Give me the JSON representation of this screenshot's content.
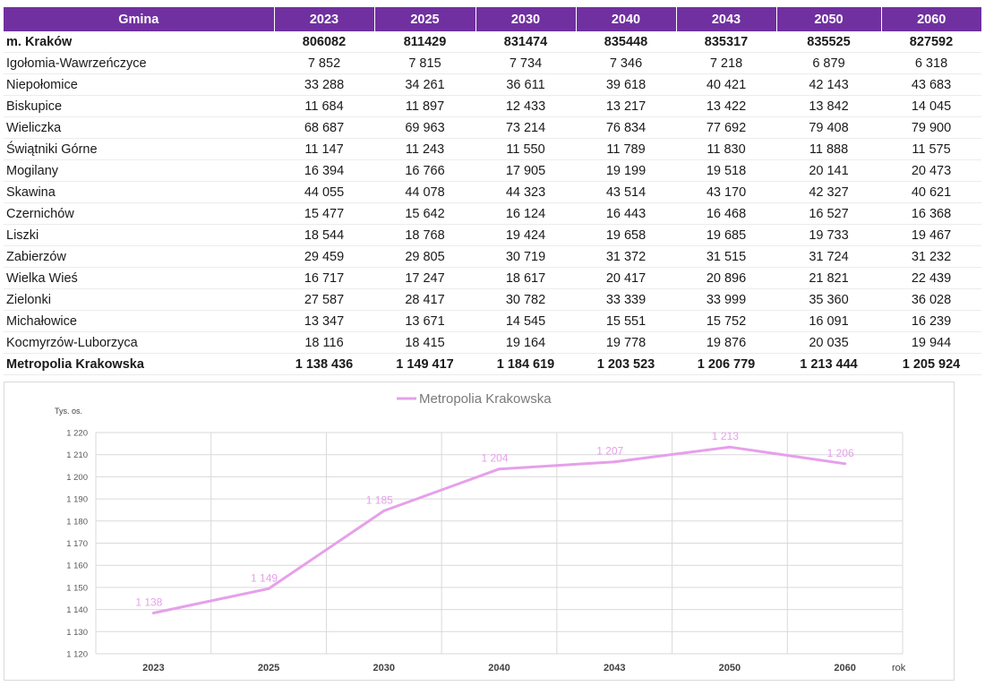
{
  "table": {
    "headers": [
      "Gmina",
      "2023",
      "2025",
      "2030",
      "2040",
      "2043",
      "2050",
      "2060"
    ],
    "rows": [
      {
        "name": "m. Kraków",
        "values": [
          "806082",
          "811429",
          "831474",
          "835448",
          "835317",
          "835525",
          "827592"
        ],
        "bold": true
      },
      {
        "name": "Igołomia-Wawrzeńczyce",
        "values": [
          "7 852",
          "7 815",
          "7 734",
          "7 346",
          "7 218",
          "6 879",
          "6 318"
        ],
        "bold": false
      },
      {
        "name": "Niepołomice",
        "values": [
          "33 288",
          "34 261",
          "36 611",
          "39 618",
          "40 421",
          "42 143",
          "43 683"
        ],
        "bold": false
      },
      {
        "name": "Biskupice",
        "values": [
          "11 684",
          "11 897",
          "12 433",
          "13 217",
          "13 422",
          "13 842",
          "14 045"
        ],
        "bold": false
      },
      {
        "name": "Wieliczka",
        "values": [
          "68 687",
          "69 963",
          "73 214",
          "76 834",
          "77 692",
          "79 408",
          "79 900"
        ],
        "bold": false
      },
      {
        "name": "Świątniki Górne",
        "values": [
          "11 147",
          "11 243",
          "11 550",
          "11 789",
          "11 830",
          "11 888",
          "11 575"
        ],
        "bold": false
      },
      {
        "name": "Mogilany",
        "values": [
          "16 394",
          "16 766",
          "17 905",
          "19 199",
          "19 518",
          "20 141",
          "20 473"
        ],
        "bold": false
      },
      {
        "name": "Skawina",
        "values": [
          "44 055",
          "44 078",
          "44 323",
          "43 514",
          "43 170",
          "42 327",
          "40 621"
        ],
        "bold": false
      },
      {
        "name": "Czernichów",
        "values": [
          "15 477",
          "15 642",
          "16 124",
          "16 443",
          "16 468",
          "16 527",
          "16 368"
        ],
        "bold": false
      },
      {
        "name": "Liszki",
        "values": [
          "18 544",
          "18 768",
          "19 424",
          "19 658",
          "19 685",
          "19 733",
          "19 467"
        ],
        "bold": false
      },
      {
        "name": "Zabierzów",
        "values": [
          "29 459",
          "29 805",
          "30 719",
          "31 372",
          "31 515",
          "31 724",
          "31 232"
        ],
        "bold": false
      },
      {
        "name": "Wielka Wieś",
        "values": [
          "16 717",
          "17 247",
          "18 617",
          "20 417",
          "20 896",
          "21 821",
          "22 439"
        ],
        "bold": false
      },
      {
        "name": "Zielonki",
        "values": [
          "27 587",
          "28 417",
          "30 782",
          "33 339",
          "33 999",
          "35 360",
          "36 028"
        ],
        "bold": false
      },
      {
        "name": "Michałowice",
        "values": [
          "13 347",
          "13 671",
          "14 545",
          "15 551",
          "15 752",
          "16 091",
          "16 239"
        ],
        "bold": false
      },
      {
        "name": "Kocmyrzów-Luborzyca",
        "values": [
          "18 116",
          "18 415",
          "19 164",
          "19 778",
          "19 876",
          "20 035",
          "19 944"
        ],
        "bold": false
      },
      {
        "name": "Metropolia Krakowska",
        "values": [
          "1 138 436",
          "1 149 417",
          "1 184 619",
          "1 203 523",
          "1 206 779",
          "1 213 444",
          "1 205 924"
        ],
        "bold": true
      }
    ]
  },
  "colors": {
    "header_bg": "#7030a0",
    "header_text": "#ffffff",
    "line": "#e6a0ea",
    "grid": "#d9d9d9"
  },
  "chart_data": {
    "type": "line",
    "title": "",
    "ylabel": "Tys. os.",
    "xlabel": "rok",
    "categories": [
      "2023",
      "2025",
      "2030",
      "2040",
      "2043",
      "2050",
      "2060"
    ],
    "series": [
      {
        "name": "Metropolia Krakowska",
        "values": [
          1138.436,
          1149.417,
          1184.619,
          1203.523,
          1206.779,
          1213.444,
          1205.924
        ],
        "labels": [
          "1 138",
          "1 149",
          "1 185",
          "1 204",
          "1 207",
          "1 213",
          "1 206"
        ]
      }
    ],
    "ylim": [
      1120,
      1220
    ],
    "ystep": 10,
    "ytick_labels": [
      "1 120",
      "1 130",
      "1 140",
      "1 150",
      "1 160",
      "1 170",
      "1 180",
      "1 190",
      "1 200",
      "1 210",
      "1 220"
    ],
    "grid": true,
    "legend": "top-center"
  }
}
